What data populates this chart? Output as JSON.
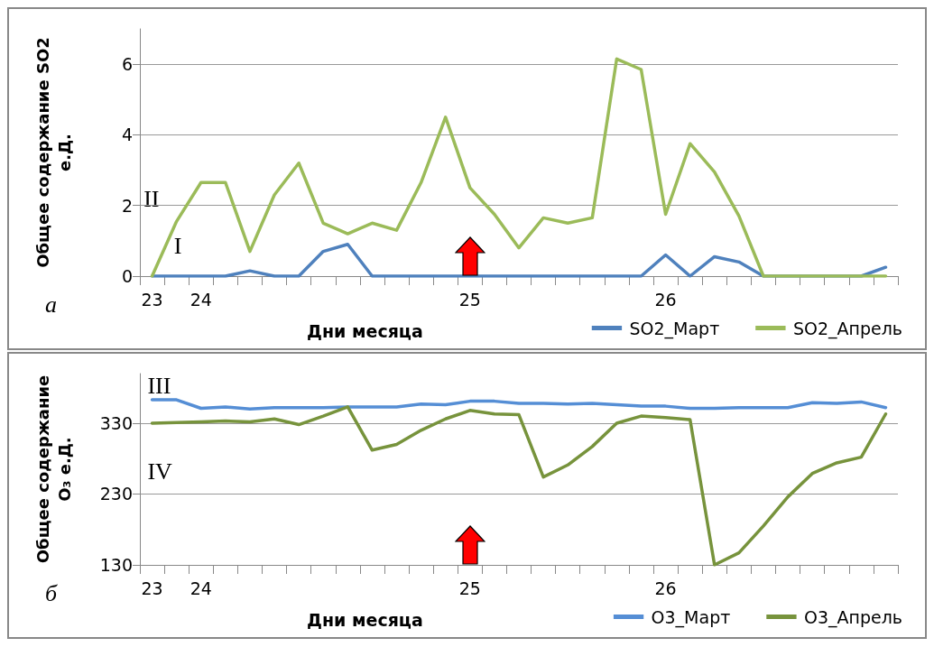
{
  "chart_data": [
    {
      "type": "line",
      "xlabel": "Дни месяца",
      "ylabel": "Общее содержание SO2 е.Д.",
      "categories": [
        "23",
        null,
        "24",
        null,
        null,
        null,
        null,
        null,
        null,
        null,
        null,
        null,
        null,
        "25",
        null,
        null,
        null,
        null,
        null,
        null,
        null,
        "26",
        null,
        null,
        null,
        null,
        null,
        null,
        null,
        null,
        null
      ],
      "series": [
        {
          "name": "SO2_Март",
          "color": "#4f81bd",
          "values": [
            0,
            0,
            0,
            0,
            0.15,
            0,
            0,
            0.7,
            0.9,
            0,
            0,
            0,
            0,
            0,
            0,
            0,
            0,
            0,
            0,
            0,
            0,
            0.6,
            0,
            0.55,
            0.4,
            0,
            0,
            0,
            0,
            0,
            0.25
          ]
        },
        {
          "name": "SO2_Апрель",
          "color": "#9bbb59",
          "values": [
            0,
            1.55,
            2.65,
            2.65,
            0.7,
            2.3,
            3.2,
            1.5,
            1.2,
            1.5,
            1.3,
            2.65,
            4.5,
            2.5,
            1.75,
            0.8,
            1.65,
            1.5,
            1.65,
            6.15,
            5.85,
            1.75,
            3.75,
            2.95,
            1.7,
            0,
            0,
            0,
            0,
            0,
            0
          ]
        }
      ],
      "ylim": [
        0,
        7
      ],
      "yticks": [
        0,
        2,
        4,
        6
      ],
      "grid": "y",
      "legend": "bottom right",
      "marker": "none",
      "annotations": [
        "II",
        "I",
        "а"
      ]
    },
    {
      "type": "line",
      "xlabel": "Дни месяца",
      "ylabel": "Общее содержание O₃ е.Д.",
      "categories": [
        "23",
        null,
        "24",
        null,
        null,
        null,
        null,
        null,
        null,
        null,
        null,
        null,
        null,
        "25",
        null,
        null,
        null,
        null,
        null,
        null,
        null,
        "26",
        null,
        null,
        null,
        null,
        null,
        null,
        null,
        null,
        null
      ],
      "series": [
        {
          "name": "O3_Март",
          "color": "#558ed5",
          "values": [
            363,
            363,
            351,
            353,
            350,
            352,
            352,
            352,
            353,
            353,
            353,
            357,
            356,
            361,
            361,
            358,
            358,
            357,
            358,
            356,
            354,
            354,
            351,
            351,
            352,
            352,
            352,
            359,
            358,
            360,
            352
          ]
        },
        {
          "name": "O3_Апрель",
          "color": "#77933c",
          "values": [
            330,
            331,
            332,
            333,
            332,
            336,
            328,
            340,
            353,
            292,
            300,
            320,
            336,
            348,
            343,
            342,
            254,
            271,
            297,
            330,
            340,
            338,
            335,
            130,
            147,
            185,
            226,
            259,
            274,
            282,
            343
          ]
        }
      ],
      "ylim": [
        130,
        400
      ],
      "yticks": [
        130,
        230,
        330
      ],
      "grid": "y",
      "legend": "bottom right",
      "marker": "none",
      "annotations": [
        "III",
        "IV",
        "б"
      ]
    }
  ]
}
